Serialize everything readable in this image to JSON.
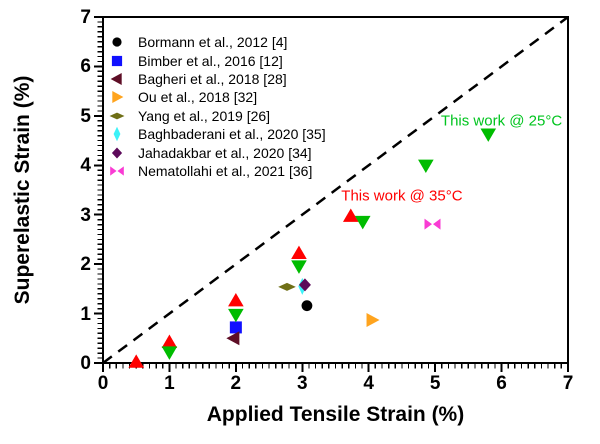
{
  "chart_data": {
    "type": "scatter",
    "title": "",
    "xlabel": "Applied Tensile Strain (%)",
    "ylabel": "Superelastic Strain (%)",
    "xlim": [
      0,
      7
    ],
    "ylim": [
      0,
      7
    ],
    "xticks": [
      "0",
      "1",
      "2",
      "3",
      "4",
      "5",
      "6",
      "7"
    ],
    "yticks": [
      "0",
      "1",
      "2",
      "3",
      "4",
      "5",
      "6",
      "7"
    ],
    "minor_tick_step": 0.1,
    "grid": false,
    "frame": true,
    "legend_position": "top-left",
    "identity_line": {
      "style": "dashed",
      "color": "#000000",
      "from": [
        0,
        0
      ],
      "to": [
        7,
        7
      ]
    },
    "annotations": [
      {
        "id": "this-work-25c",
        "text": "This work @ 25°C",
        "color": "#00c41e",
        "x": 6.0,
        "y": 4.9
      },
      {
        "id": "this-work-35c",
        "text": "This work @ 35°C",
        "color": "#ff0000",
        "x": 4.5,
        "y": 3.38
      }
    ],
    "series": [
      {
        "id": "bormann-2012",
        "name": "Bormann et al., 2012 [4]",
        "marker": "circle",
        "color": "#000000",
        "legend": true,
        "points": [
          [
            3.07,
            1.16
          ]
        ]
      },
      {
        "id": "bimber-2016",
        "name": "Bimber et al., 2016 [12]",
        "marker": "square",
        "color": "#1010ff",
        "legend": true,
        "points": [
          [
            2.0,
            0.72
          ]
        ]
      },
      {
        "id": "bagheri-2018",
        "name": "Bagheri et al., 2018 [28]",
        "marker": "triangle-left",
        "color": "#5e0e26",
        "legend": true,
        "points": [
          [
            1.97,
            0.5
          ]
        ]
      },
      {
        "id": "ou-2018",
        "name": "Ou et al., 2018 [32]",
        "marker": "triangle-right",
        "color": "#ffa41e",
        "legend": true,
        "points": [
          [
            4.05,
            0.87
          ]
        ]
      },
      {
        "id": "yang-2019",
        "name": "Yang et al., 2019 [26]",
        "marker": "diamond-wide",
        "color": "#6f6f16",
        "legend": true,
        "points": [
          [
            2.77,
            1.54
          ]
        ]
      },
      {
        "id": "baghbaderani-2020",
        "name": "Baghbaderani et al., 2020 [35]",
        "marker": "diamond-tall",
        "color": "#3cf2f8",
        "legend": true,
        "points": [
          [
            3.0,
            1.55
          ]
        ]
      },
      {
        "id": "jahadakbar-2020",
        "name": "Jahadakbar et al., 2020 [34]",
        "marker": "diamond",
        "color": "#5c0a5a",
        "legend": true,
        "points": [
          [
            3.04,
            1.58
          ]
        ]
      },
      {
        "id": "nematollahi-2021",
        "name": "Nematollahi et al., 2021 [36]",
        "marker": "bowtie",
        "color": "#f93bd3",
        "legend": true,
        "points": [
          [
            4.96,
            2.81
          ]
        ]
      },
      {
        "id": "this-work-35c",
        "name": "This work @ 35°C",
        "marker": "triangle-up",
        "color": "#ff0000",
        "legend": false,
        "points": [
          [
            0.5,
            0.03
          ],
          [
            1.0,
            0.43
          ],
          [
            2.0,
            1.27
          ],
          [
            2.95,
            2.23
          ],
          [
            3.73,
            2.98
          ]
        ]
      },
      {
        "id": "this-work-25c",
        "name": "This work @ 25°C",
        "marker": "triangle-down",
        "color": "#00bc00",
        "legend": false,
        "points": [
          [
            1.0,
            0.21
          ],
          [
            2.0,
            0.97
          ],
          [
            2.95,
            1.95
          ],
          [
            3.91,
            2.85
          ],
          [
            4.86,
            3.99
          ],
          [
            5.8,
            4.62
          ]
        ]
      }
    ]
  }
}
